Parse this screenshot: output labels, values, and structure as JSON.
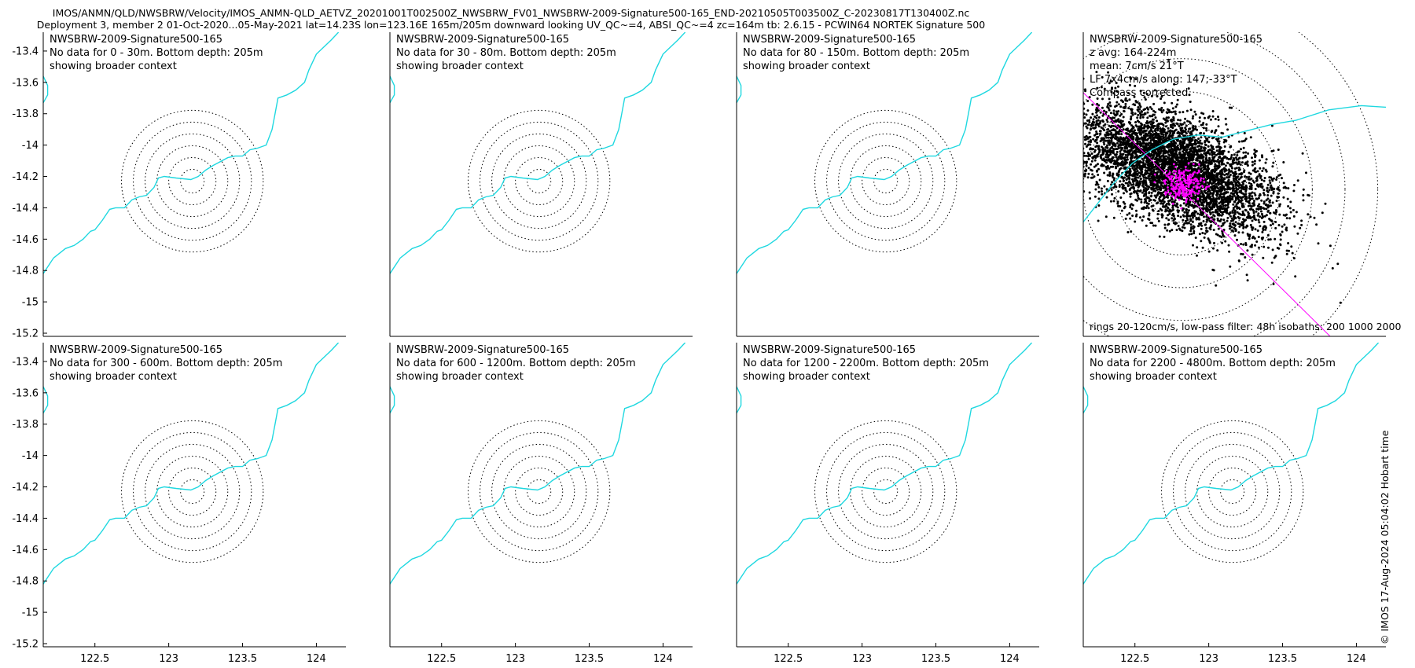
{
  "header": {
    "title_line1": "IMOS/ANMN/QLD/NWSBRW/Velocity/IMOS_ANMN-QLD_AETVZ_20201001T002500Z_NWSBRW_FV01_NWSBRW-2009-Signature500-165_END-20210505T003500Z_C-20230817T130400Z.nc",
    "title_line2": "Deployment 3, member 2 01-Oct-2020...05-May-2021 lat=14.23S lon=123.16E 165m/205m downward looking UV_QC~=4, ABSI_QC~=4 zc=164m tb: 2.6.15 - PCWIN64 NORTEK Signature 500"
  },
  "footer": {
    "timestamp": "© IMOS 17-Aug-2024 05:04:02 Hobart time"
  },
  "colors": {
    "coastline": "#1fd8e0",
    "scatter_raw": "#000000",
    "scatter_lowpass": "#ff00ff",
    "axis_line": "#ff00ff",
    "rings": "#000000"
  },
  "chart_data": {
    "type": "scatter",
    "xlim": [
      122.15,
      124.2
    ],
    "ylim": [
      -15.22,
      -13.28
    ],
    "xticks": [
      "122.5",
      "123",
      "123.5",
      "124"
    ],
    "xtick_values": [
      122.5,
      123.0,
      123.5,
      124.0
    ],
    "yticks": [
      "-13.4",
      "-13.6",
      "-13.8",
      "-14",
      "-14.2",
      "-14.4",
      "-14.6",
      "-14.8",
      "-15",
      "-15.2"
    ],
    "ytick_values": [
      -13.4,
      -13.6,
      -13.8,
      -14.0,
      -14.2,
      -14.4,
      -14.6,
      -14.8,
      -15.0,
      -15.2
    ],
    "mooring": {
      "lon": 123.16,
      "lat": -14.23
    },
    "ring_radii_deg": [
      0.08,
      0.16,
      0.24,
      0.32,
      0.4,
      0.48
    ],
    "coastline": [
      [
        122.15,
        -14.82
      ],
      [
        122.22,
        -14.72
      ],
      [
        122.3,
        -14.66
      ],
      [
        122.36,
        -14.64
      ],
      [
        122.42,
        -14.6
      ],
      [
        122.47,
        -14.55
      ],
      [
        122.5,
        -14.54
      ],
      [
        122.55,
        -14.48
      ],
      [
        122.6,
        -14.41
      ],
      [
        122.64,
        -14.4
      ],
      [
        122.7,
        -14.4
      ],
      [
        122.75,
        -14.35
      ],
      [
        122.8,
        -14.33
      ],
      [
        122.85,
        -14.32
      ],
      [
        122.9,
        -14.27
      ],
      [
        122.93,
        -14.21
      ],
      [
        122.97,
        -14.2
      ],
      [
        123.05,
        -14.21
      ],
      [
        123.15,
        -14.22
      ],
      [
        123.2,
        -14.2
      ],
      [
        123.25,
        -14.16
      ],
      [
        123.3,
        -14.13
      ],
      [
        123.4,
        -14.08
      ],
      [
        123.45,
        -14.07
      ],
      [
        123.5,
        -14.07
      ],
      [
        123.55,
        -14.03
      ],
      [
        123.6,
        -14.02
      ],
      [
        123.66,
        -14.0
      ],
      [
        123.7,
        -13.9
      ],
      [
        123.72,
        -13.8
      ],
      [
        123.74,
        -13.7
      ],
      [
        123.8,
        -13.68
      ],
      [
        123.86,
        -13.65
      ],
      [
        123.92,
        -13.6
      ],
      [
        123.95,
        -13.52
      ],
      [
        124.0,
        -13.42
      ],
      [
        124.1,
        -13.33
      ],
      [
        124.15,
        -13.28
      ]
    ],
    "coastline_stub": [
      [
        122.15,
        -13.56
      ],
      [
        122.18,
        -13.62
      ],
      [
        122.18,
        -13.68
      ],
      [
        122.15,
        -13.73
      ]
    ],
    "panels": [
      {
        "id": "0-30",
        "name": "NWSBRW-2009-Signature500-165",
        "line2": "No data for 0 - 30m. Bottom depth: 205m",
        "line3": "showing broader context"
      },
      {
        "id": "30-80",
        "name": "NWSBRW-2009-Signature500-165",
        "line2": "No data for 30 - 80m. Bottom depth: 205m",
        "line3": "showing broader context"
      },
      {
        "id": "80-150",
        "name": "NWSBRW-2009-Signature500-165",
        "line2": "No data for 80 - 150m. Bottom depth: 205m",
        "line3": "showing broader context"
      },
      {
        "id": "150-300",
        "name": "NWSBRW-2009-Signature500-165",
        "line2": "z avg: 164-224m",
        "line3": "mean: 7cm/s 21°T",
        "line4": "LF 7x4cm/s along: 147;-33°T",
        "line5": "Compass corrected",
        "bottom_note": "rings 20-120cm/s, low-pass filter: 48h isobaths: 200 1000 2000",
        "velocity_scatter": {
          "ring_speeds_cm_s": [
            20,
            40,
            60,
            80,
            100,
            120
          ],
          "mean_speed_cm_s": 7,
          "mean_dir_degT": 21,
          "lf_major_cm_s": 7,
          "lf_minor_cm_s": 4,
          "major_axis_degT": 147,
          "raw_cloud": {
            "center_u_cm_s": -5,
            "center_v_cm_s": 20,
            "major_sd_cm_s": 38,
            "minor_sd_cm_s": 20,
            "axis_degT": 135
          },
          "lowpass_cloud": {
            "center_u_cm_s": 2,
            "center_v_cm_s": 5,
            "sd_cm_s": 6
          },
          "coastline_cm_s": [
            [
              -120,
              -46
            ],
            [
              -80,
              -45
            ],
            [
              -62,
              -35
            ],
            [
              -52,
              -15
            ],
            [
              -42,
              5
            ],
            [
              -30,
              25
            ],
            [
              -18,
              38
            ],
            [
              -5,
              48
            ],
            [
              10,
              52
            ],
            [
              25,
              50
            ],
            [
              40,
              56
            ],
            [
              55,
              62
            ],
            [
              70,
              66
            ],
            [
              90,
              76
            ],
            [
              110,
              80
            ],
            [
              130,
              78
            ],
            [
              140,
              72
            ],
            [
              146,
              84
            ],
            [
              152,
              92
            ]
          ],
          "ulim": [
            -60,
            125
          ],
          "vlim": [
            -140,
            150
          ]
        }
      },
      {
        "id": "300-600",
        "name": "NWSBRW-2009-Signature500-165",
        "line2": "No data for 300 - 600m. Bottom depth: 205m",
        "line3": "showing broader context"
      },
      {
        "id": "600-1200",
        "name": "NWSBRW-2009-Signature500-165",
        "line2": "No data for 600 - 1200m. Bottom depth: 205m",
        "line3": "showing broader context"
      },
      {
        "id": "1200-2200",
        "name": "NWSBRW-2009-Signature500-165",
        "line2": "No data for 1200 - 2200m. Bottom depth: 205m",
        "line3": "showing broader context"
      },
      {
        "id": "2200-4800",
        "name": "NWSBRW-2009-Signature500-165",
        "line2": "No data for 2200 - 4800m. Bottom depth: 205m",
        "line3": "showing broader context"
      }
    ]
  }
}
